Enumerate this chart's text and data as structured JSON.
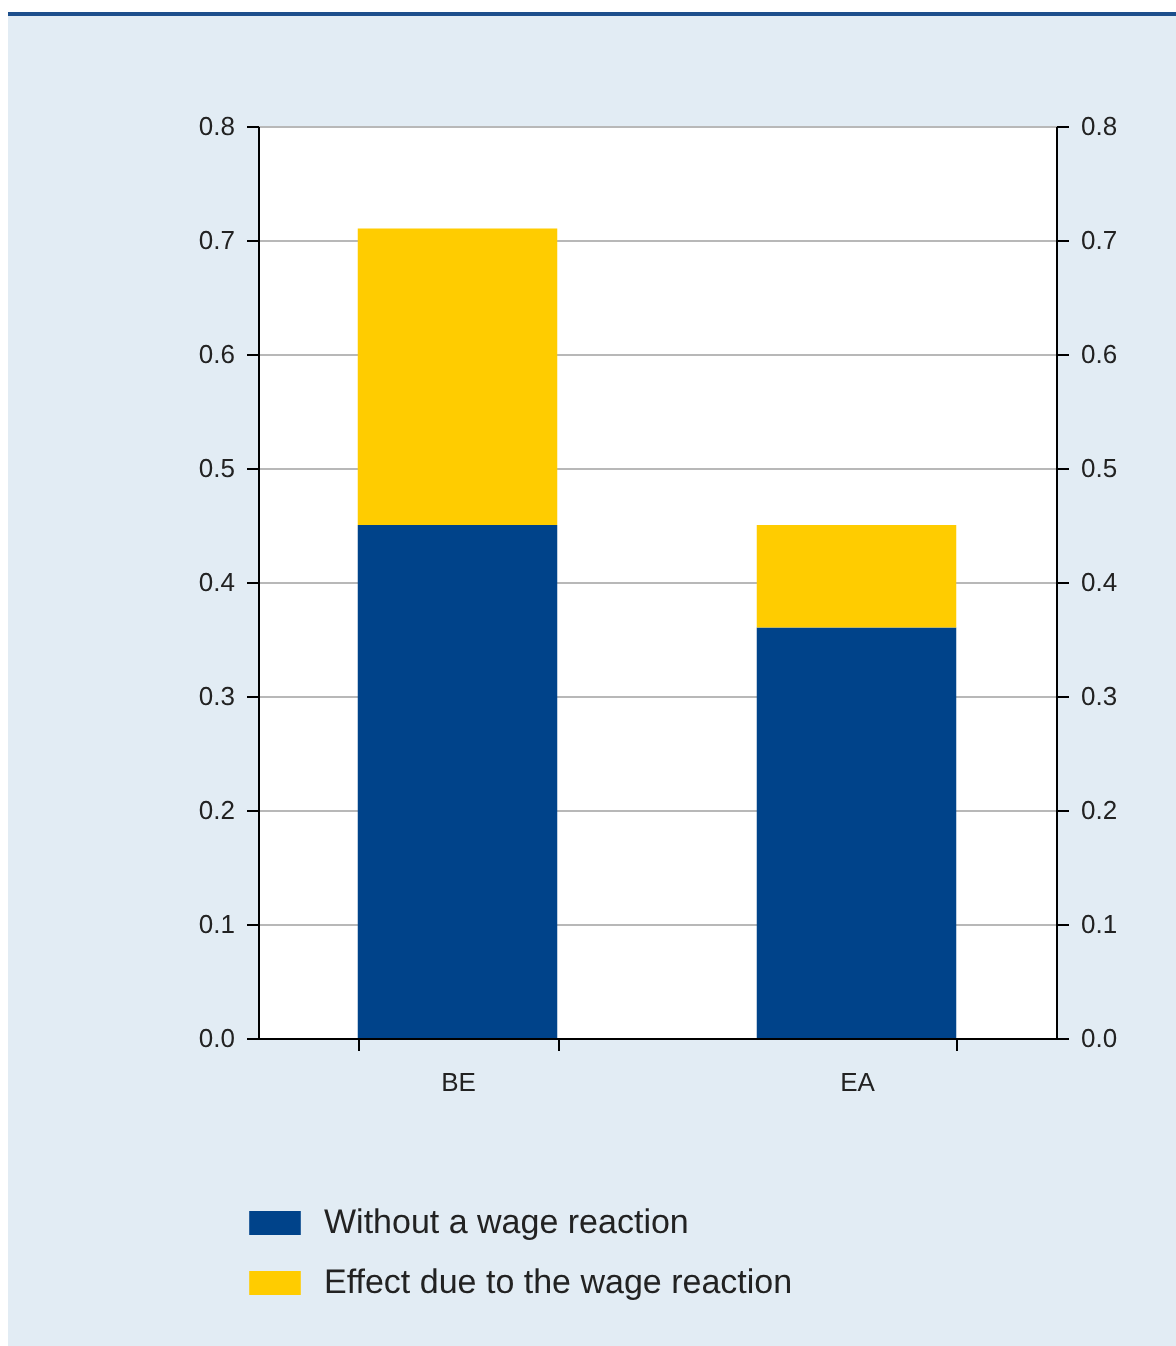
{
  "chart_data": {
    "type": "bar",
    "stacked": true,
    "categories": [
      "BE",
      "EA"
    ],
    "series": [
      {
        "name": "Without a wage reaction",
        "color": "#00438a",
        "values": [
          0.45,
          0.36
        ]
      },
      {
        "name": "Effect due to the wage reaction",
        "color": "#ffcc00",
        "values": [
          0.26,
          0.09
        ]
      }
    ],
    "ylim": [
      0,
      0.8
    ],
    "yticks": [
      {
        "value": 0,
        "label": "0.0"
      },
      0.1,
      0.2,
      0.3,
      0.4,
      0.5,
      0.6,
      0.7,
      0.8
    ],
    "y2lim": [
      0,
      0.8
    ],
    "y2ticks": [
      {
        "value": 0,
        "label": "0.0"
      },
      0.1,
      0.2,
      0.3,
      0.4,
      0.5,
      0.6,
      0.7,
      0.8
    ],
    "grid": "y",
    "legend": "bottom"
  }
}
